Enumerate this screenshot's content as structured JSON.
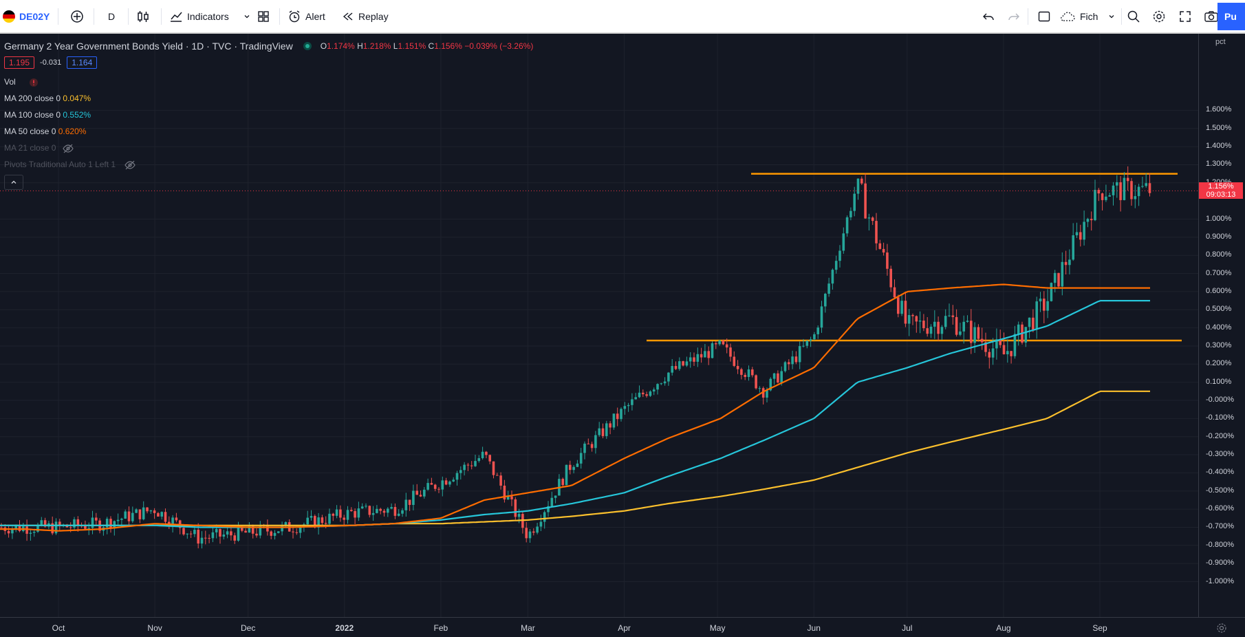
{
  "toolbar": {
    "symbol": "DE02Y",
    "interval": "D",
    "indicators_label": "Indicators",
    "alert_label": "Alert",
    "replay_label": "Replay",
    "layout_label": "Fich",
    "publish_label": "Pu"
  },
  "legend": {
    "title": "Germany 2 Year Government Bonds Yield · 1D · TVC · TradingView",
    "o_label": "O",
    "o_value": "1.174%",
    "h_label": "H",
    "h_value": "1.218%",
    "l_label": "L",
    "l_value": "1.151%",
    "c_label": "C",
    "c_value": "1.156%",
    "change": "−0.039% (−3.26%)",
    "sell": "1.195",
    "spread": "-0.031",
    "buy": "1.164"
  },
  "indicators": [
    {
      "label": "Vol",
      "value": "",
      "color": "#d1d4dc"
    },
    {
      "label": "MA 200 close 0",
      "value": "0.047%",
      "color": "#fbc02d"
    },
    {
      "label": "MA 100 close 0",
      "value": "0.552%",
      "color": "#26c6da"
    },
    {
      "label": "MA 50 close 0",
      "value": "0.620%",
      "color": "#ff6d00"
    },
    {
      "label": "MA 21 close 0",
      "value": "",
      "color": "#50535e"
    },
    {
      "label": "Pivots Traditional Auto 1 Left 1",
      "value": "",
      "color": "#50535e"
    }
  ],
  "price_axis": {
    "unit": "pct",
    "ticks": [
      "1.600%",
      "1.500%",
      "1.400%",
      "1.300%",
      "1.200%",
      "1.000%",
      "0.900%",
      "0.800%",
      "0.700%",
      "0.600%",
      "0.500%",
      "0.400%",
      "0.300%",
      "0.200%",
      "0.100%",
      "-0.000%",
      "-0.100%",
      "-0.200%",
      "-0.300%",
      "-0.400%",
      "-0.500%",
      "-0.600%",
      "-0.700%",
      "-0.800%",
      "-0.900%",
      "-1.000%"
    ],
    "current_price": "1.156%",
    "countdown": "09:03:13"
  },
  "time_axis": {
    "labels": [
      "Oct",
      "Nov",
      "Dec",
      "2022",
      "Feb",
      "Mar",
      "Apr",
      "May",
      "Jun",
      "Jul",
      "Aug",
      "Sep"
    ]
  },
  "chart_data": {
    "type": "line",
    "ylabel": "pct",
    "ylim": [
      -1.05,
      1.7
    ],
    "x": [
      "2021-09-20",
      "2021-10-01",
      "2021-10-15",
      "2021-11-01",
      "2021-11-15",
      "2021-12-01",
      "2021-12-15",
      "2022-01-03",
      "2022-01-17",
      "2022-02-01",
      "2022-02-15",
      "2022-03-01",
      "2022-03-15",
      "2022-04-01",
      "2022-04-15",
      "2022-05-02",
      "2022-05-16",
      "2022-06-01",
      "2022-06-15",
      "2022-07-01",
      "2022-07-15",
      "2022-08-01",
      "2022-08-15",
      "2022-09-01"
    ],
    "series": [
      {
        "name": "Germany 2 Year Government Bonds Yield",
        "color": "#d1d4dc",
        "values": [
          -0.7,
          -0.7,
          -0.68,
          -0.6,
          -0.76,
          -0.73,
          -0.7,
          -0.62,
          -0.6,
          -0.45,
          -0.3,
          -0.75,
          -0.35,
          -0.05,
          0.15,
          0.3,
          0.05,
          0.35,
          1.2,
          0.4,
          0.45,
          0.25,
          0.55,
          1.16
        ]
      },
      {
        "name": "MA 200 close 0",
        "color": "#fbc02d",
        "values": [
          -0.69,
          -0.69,
          -0.69,
          -0.69,
          -0.69,
          -0.69,
          -0.69,
          -0.69,
          -0.68,
          -0.68,
          -0.67,
          -0.66,
          -0.64,
          -0.61,
          -0.57,
          -0.53,
          -0.49,
          -0.44,
          -0.37,
          -0.29,
          -0.23,
          -0.16,
          -0.1,
          0.05
        ]
      },
      {
        "name": "MA 100 close 0",
        "color": "#26c6da",
        "values": [
          -0.69,
          -0.69,
          -0.69,
          -0.69,
          -0.7,
          -0.7,
          -0.7,
          -0.69,
          -0.68,
          -0.66,
          -0.63,
          -0.61,
          -0.57,
          -0.51,
          -0.42,
          -0.32,
          -0.22,
          -0.1,
          0.1,
          0.18,
          0.26,
          0.34,
          0.41,
          0.55
        ]
      },
      {
        "name": "MA 50 close 0",
        "color": "#ff6d00",
        "values": [
          -0.71,
          -0.72,
          -0.71,
          -0.68,
          -0.69,
          -0.7,
          -0.7,
          -0.69,
          -0.68,
          -0.65,
          -0.55,
          -0.51,
          -0.47,
          -0.32,
          -0.21,
          -0.1,
          0.05,
          0.18,
          0.45,
          0.6,
          0.62,
          0.64,
          0.62,
          0.62
        ]
      }
    ],
    "horizontal_lines": [
      {
        "value": 1.25,
        "color": "#ff9800"
      },
      {
        "value": 0.33,
        "color": "#ff9800"
      }
    ],
    "grid": true
  }
}
